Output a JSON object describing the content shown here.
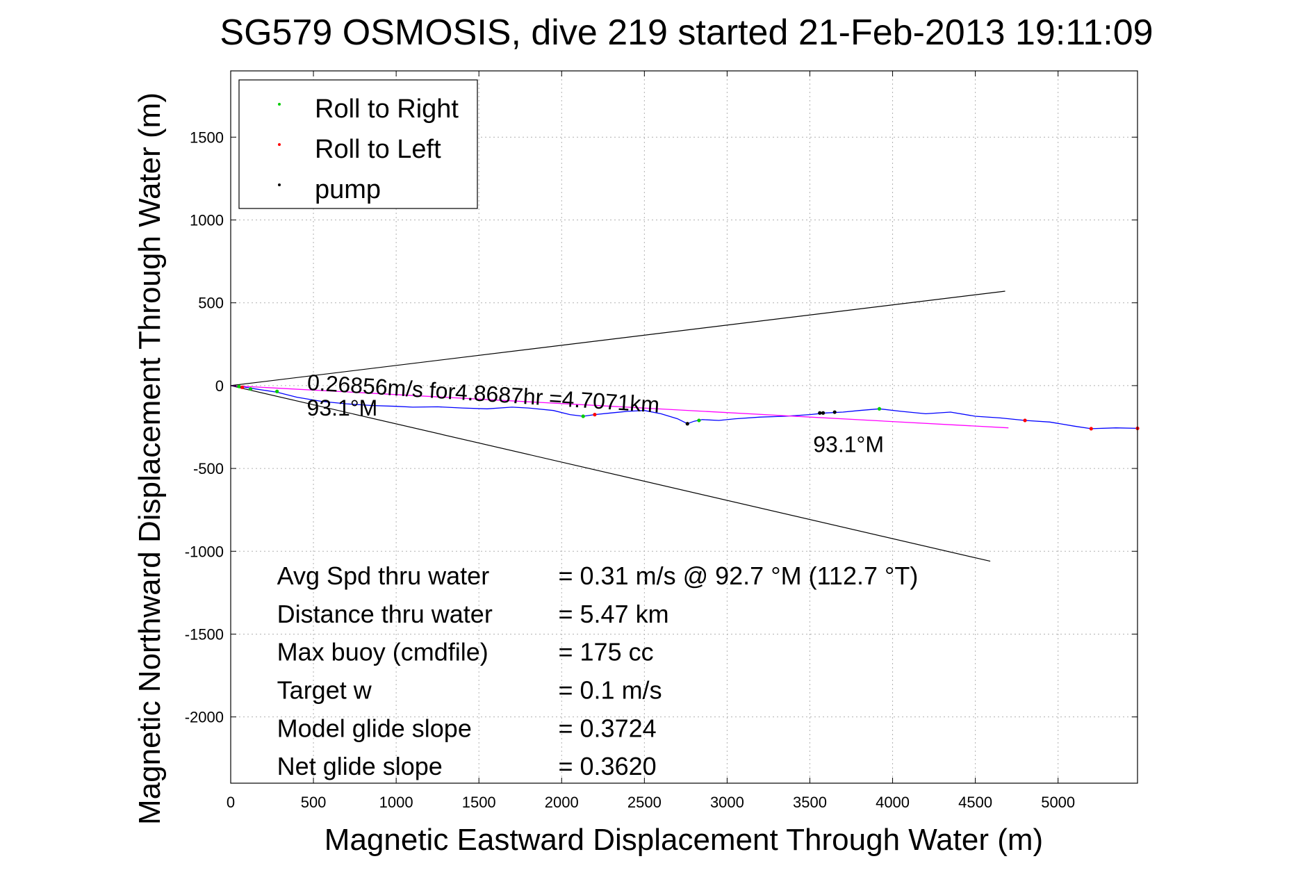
{
  "chart_data": {
    "type": "line",
    "title": "SG579 OSMOSIS, dive 219 started 21-Feb-2013 19:11:09",
    "xlabel": "Magnetic Eastward Displacement Through Water (m)",
    "ylabel": "Magnetic Northward Displacement Through Water (m)",
    "xlim": [
      0,
      5480
    ],
    "ylim": [
      -2400,
      1900
    ],
    "xticks": [
      0,
      500,
      1000,
      1500,
      2000,
      2500,
      3000,
      3500,
      4000,
      4500,
      5000
    ],
    "yticks": [
      -2000,
      -1500,
      -1000,
      -500,
      0,
      500,
      1000,
      1500
    ],
    "grid": true,
    "legend": {
      "position": "top-left",
      "entries": [
        {
          "label": "Roll to Right",
          "color": "#00cc00"
        },
        {
          "label": "Roll to Left",
          "color": "#ff0000"
        },
        {
          "label": "pump",
          "color": "#000000"
        }
      ]
    },
    "series": [
      {
        "kind": "track",
        "color": "#0000ff",
        "x": [
          0,
          60,
          150,
          280,
          400,
          550,
          700,
          850,
          1000,
          1100,
          1250,
          1400,
          1550,
          1700,
          1800,
          1950,
          2050,
          2130,
          2200,
          2300,
          2400,
          2500,
          2600,
          2700,
          2760,
          2800,
          2850,
          2950,
          3050,
          3200,
          3350,
          3500,
          3600,
          3700,
          3800,
          3920,
          4050,
          4200,
          4350,
          4500,
          4650,
          4800,
          4950,
          5100,
          5200,
          5350,
          5480
        ],
        "y": [
          0,
          -5,
          -20,
          -40,
          -70,
          -95,
          -110,
          -120,
          -125,
          -130,
          -128,
          -135,
          -140,
          -130,
          -135,
          -150,
          -175,
          -185,
          -175,
          -165,
          -155,
          -150,
          -170,
          -200,
          -230,
          -215,
          -205,
          -210,
          -200,
          -190,
          -185,
          -175,
          -165,
          -160,
          -150,
          -140,
          -155,
          -170,
          -160,
          -185,
          -195,
          -210,
          -220,
          -245,
          -260,
          -255,
          -258
        ]
      },
      {
        "kind": "Roll to Right",
        "color": "#00cc00",
        "x": [
          50,
          120,
          280,
          2130,
          2830,
          3920
        ],
        "y": [
          -5,
          -20,
          -35,
          -185,
          -210,
          -140
        ]
      },
      {
        "kind": "Roll to Left",
        "color": "#ff0000",
        "x": [
          70,
          2200,
          4800,
          5200,
          5480
        ],
        "y": [
          -10,
          -175,
          -210,
          -260,
          -258
        ]
      },
      {
        "kind": "pump",
        "color": "#000000",
        "x": [
          2760,
          3560,
          3580,
          3650
        ],
        "y": [
          -230,
          -165,
          -165,
          -160
        ]
      },
      {
        "kind": "course line",
        "color": "#ff00ff",
        "x": [
          0,
          4700
        ],
        "y": [
          0,
          -255
        ]
      },
      {
        "kind": "upper bound",
        "color": "#000000",
        "x": [
          0,
          4680
        ],
        "y": [
          0,
          570
        ]
      },
      {
        "kind": "lower bound",
        "color": "#000000",
        "x": [
          0,
          4590
        ],
        "y": [
          0,
          -1060
        ]
      }
    ],
    "annotations": [
      {
        "text": "0.26856m/s for4.8687hr =4.7071km",
        "x": 460,
        "y": -25,
        "rotate": 3.7,
        "size": 32
      },
      {
        "text": "93.1°M",
        "x": 460,
        "y": -180,
        "rotate": 0,
        "size": 32
      },
      {
        "text": "93.1°M",
        "x": 3520,
        "y": -400,
        "rotate": 0,
        "size": 32
      }
    ],
    "stats": [
      {
        "label": "Avg Spd thru water",
        "value": "=  0.31 m/s @  92.7 °M (112.7 °T)",
        "y": -1200
      },
      {
        "label": "Distance thru water",
        "value": "=  5.47 km",
        "y": -1430
      },
      {
        "label": "Max buoy (cmdfile)",
        "value": "= 175 cc",
        "y": -1660
      },
      {
        "label": "Target w",
        "value": "= 0.1 m/s",
        "y": -1890
      },
      {
        "label": "Model glide slope",
        "value": "= 0.3724",
        "y": -2120
      },
      {
        "label": "Net glide slope",
        "value": "= 0.3620",
        "y": -2350
      }
    ]
  }
}
